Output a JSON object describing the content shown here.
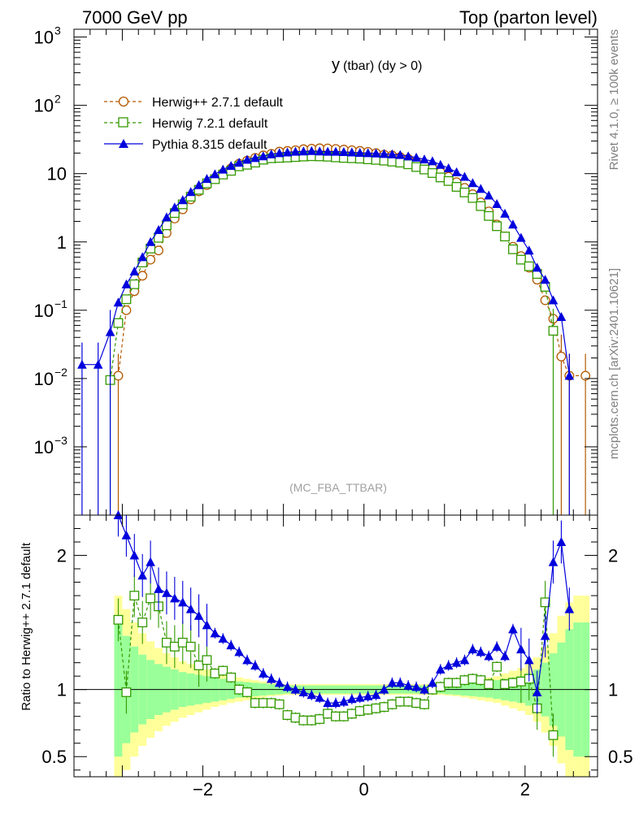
{
  "header": {
    "left": "7000 GeV pp",
    "right": "Top (parton level)"
  },
  "side_labels": {
    "rivet": "Rivet 4.1.0, ≥ 100k events",
    "mcplots": "mcplots.cern.ch [arXiv:2401.10621]"
  },
  "colors": {
    "herwig271": "#b35900",
    "herwig721": "#339900",
    "pythia": "#0000dd",
    "band_inner": "#99ff99",
    "band_outer": "#ffff99"
  },
  "chart_data": [
    {
      "type": "line",
      "title": "y (tbar) (dy > 0)",
      "title_main": "y",
      "title_sub": "(tbar) (dy > 0)",
      "analysis_tag": "(MC_FBA_TTBAR)",
      "xlabel": "",
      "ylabel": "",
      "xlim": [
        -3.6,
        2.9
      ],
      "ylim": [
        0.0001,
        1300
      ],
      "yscale": "log",
      "y_ticks": [
        {
          "value": 0.001,
          "base": "10",
          "exp": "−3"
        },
        {
          "value": 0.01,
          "base": "10",
          "exp": "−2"
        },
        {
          "value": 0.1,
          "base": "10",
          "exp": "−1"
        },
        {
          "value": 1,
          "base": "1",
          "exp": ""
        },
        {
          "value": 10,
          "base": "10",
          "exp": ""
        },
        {
          "value": 100,
          "base": "10",
          "exp": "2"
        },
        {
          "value": 1000,
          "base": "10",
          "exp": "3"
        }
      ],
      "legend": [
        "Herwig++ 2.7.1 default",
        "Herwig 7.2.1 default",
        "Pythia 8.315 default"
      ],
      "series": [
        {
          "name": "Herwig++ 2.7.1 default",
          "marker": "open-circle",
          "x": [
            -3.05,
            -2.95,
            -2.85,
            -2.75,
            -2.65,
            -2.55,
            -2.45,
            -2.35,
            -2.25,
            -2.15,
            -2.05,
            -1.95,
            -1.85,
            -1.75,
            -1.65,
            -1.55,
            -1.45,
            -1.35,
            -1.25,
            -1.15,
            -1.05,
            -0.95,
            -0.85,
            -0.75,
            -0.65,
            -0.55,
            -0.45,
            -0.35,
            -0.25,
            -0.15,
            -0.05,
            0.05,
            0.15,
            0.25,
            0.35,
            0.45,
            0.55,
            0.65,
            0.75,
            0.85,
            0.95,
            1.05,
            1.15,
            1.25,
            1.35,
            1.45,
            1.55,
            1.65,
            1.75,
            1.85,
            1.95,
            2.05,
            2.15,
            2.25,
            2.35,
            2.45,
            2.55,
            2.75
          ],
          "values": [
            0.011,
            0.1,
            0.19,
            0.32,
            0.55,
            0.75,
            1.35,
            2.2,
            3.0,
            4.2,
            5.5,
            6.8,
            8.5,
            10.2,
            12.0,
            14.0,
            15.5,
            17.0,
            18.5,
            19.5,
            21.0,
            21.5,
            22.0,
            22.8,
            23.2,
            23.5,
            23.4,
            23.0,
            22.5,
            22.0,
            21.5,
            20.8,
            20.0,
            19.0,
            18.5,
            17.5,
            16.5,
            15.0,
            13.5,
            12.0,
            10.5,
            9.0,
            7.5,
            6.2,
            5.0,
            3.8,
            2.8,
            1.8,
            1.2,
            0.85,
            0.62,
            0.42,
            0.28,
            0.14,
            0.075,
            0.021,
            0.011,
            0.011
          ]
        },
        {
          "name": "Herwig 7.2.1 default",
          "marker": "open-square",
          "x": [
            -3.15,
            -3.05,
            -2.95,
            -2.85,
            -2.75,
            -2.65,
            -2.55,
            -2.45,
            -2.35,
            -2.25,
            -2.15,
            -2.05,
            -1.95,
            -1.85,
            -1.75,
            -1.65,
            -1.55,
            -1.45,
            -1.35,
            -1.25,
            -1.15,
            -1.05,
            -0.95,
            -0.85,
            -0.75,
            -0.65,
            -0.55,
            -0.45,
            -0.35,
            -0.25,
            -0.15,
            -0.05,
            0.05,
            0.15,
            0.25,
            0.35,
            0.45,
            0.55,
            0.65,
            0.75,
            0.85,
            0.95,
            1.05,
            1.15,
            1.25,
            1.35,
            1.45,
            1.55,
            1.65,
            1.75,
            1.85,
            1.95,
            2.05,
            2.15,
            2.25,
            2.35
          ],
          "values": [
            0.0095,
            0.065,
            0.145,
            0.24,
            0.5,
            0.8,
            1.15,
            1.75,
            2.65,
            3.55,
            4.6,
            5.8,
            7.2,
            8.3,
            9.7,
            11.0,
            12.8,
            13.5,
            14.5,
            16.0,
            16.8,
            17.0,
            17.2,
            17.5,
            17.8,
            18.0,
            17.9,
            17.7,
            17.3,
            17.0,
            16.8,
            16.6,
            16.2,
            15.9,
            15.5,
            15.0,
            14.5,
            13.7,
            12.5,
            11.5,
            10.2,
            8.8,
            7.8,
            6.4,
            5.3,
            4.4,
            3.35,
            2.4,
            1.7,
            1.2,
            0.78,
            0.55,
            0.44,
            0.34,
            0.22,
            0.05
          ]
        },
        {
          "name": "Pythia 8.315 default",
          "marker": "filled-triangle",
          "x": [
            -3.5,
            -3.3,
            -3.15,
            -3.05,
            -2.95,
            -2.85,
            -2.75,
            -2.65,
            -2.55,
            -2.45,
            -2.35,
            -2.25,
            -2.15,
            -2.05,
            -1.95,
            -1.85,
            -1.75,
            -1.65,
            -1.55,
            -1.45,
            -1.35,
            -1.25,
            -1.15,
            -1.05,
            -0.95,
            -0.85,
            -0.75,
            -0.65,
            -0.55,
            -0.45,
            -0.35,
            -0.25,
            -0.15,
            -0.05,
            0.05,
            0.15,
            0.25,
            0.35,
            0.45,
            0.55,
            0.65,
            0.75,
            0.85,
            0.95,
            1.05,
            1.15,
            1.25,
            1.35,
            1.45,
            1.55,
            1.65,
            1.75,
            1.85,
            1.95,
            2.05,
            2.15,
            2.25,
            2.35,
            2.45,
            2.55
          ],
          "values": [
            0.016,
            0.016,
            0.048,
            0.13,
            0.24,
            0.37,
            0.6,
            1.0,
            1.5,
            2.3,
            3.2,
            4.1,
            5.4,
            6.8,
            8.4,
            9.8,
            11.5,
            13.0,
            14.5,
            16.0,
            17.0,
            18.0,
            19.2,
            20.0,
            20.5,
            21.0,
            21.2,
            21.5,
            21.2,
            21.0,
            21.0,
            20.8,
            20.5,
            20.2,
            20.0,
            19.8,
            19.5,
            19.2,
            18.8,
            18.0,
            17.2,
            16.2,
            15.2,
            13.5,
            12.0,
            10.5,
            9.0,
            7.3,
            6.0,
            4.8,
            3.6,
            2.6,
            1.8,
            1.15,
            0.75,
            0.42,
            0.28,
            0.14,
            0.08,
            0.011
          ]
        }
      ]
    },
    {
      "type": "line",
      "title": "",
      "xlabel": "",
      "ylabel": "Ratio to Herwig++ 2.7.1 default",
      "xlim": [
        -3.6,
        2.9
      ],
      "ylim": [
        0.35,
        2.3
      ],
      "x_ticks": [
        {
          "value": -2,
          "label": "−2"
        },
        {
          "value": 0,
          "label": "0"
        },
        {
          "value": 2,
          "label": "2"
        }
      ],
      "y_ticks": [
        {
          "value": 0.5,
          "label": "0.5"
        },
        {
          "value": 1,
          "label": "1"
        },
        {
          "value": 2,
          "label": "2"
        }
      ],
      "reference_line": 1,
      "uncertainty_band": {
        "x": [
          -3.1,
          -3.0,
          -2.9,
          -2.8,
          -2.7,
          -2.6,
          -2.5,
          -2.4,
          -2.3,
          -2.2,
          -2.1,
          -2.0,
          -1.9,
          -1.8,
          -1.7,
          -1.6,
          -1.5,
          -1.4,
          -1.3,
          -1.2,
          -1.1,
          -1.0,
          1.0,
          1.1,
          1.2,
          1.3,
          1.4,
          1.5,
          1.6,
          1.7,
          1.8,
          1.9,
          2.0,
          2.1,
          2.2,
          2.3,
          2.4,
          2.5,
          2.6,
          2.7,
          2.8
        ],
        "inner": [
          0.5,
          0.4,
          0.32,
          0.26,
          0.22,
          0.19,
          0.17,
          0.15,
          0.13,
          0.12,
          0.11,
          0.1,
          0.09,
          0.08,
          0.07,
          0.06,
          0.055,
          0.05,
          0.045,
          0.04,
          0.035,
          0.03,
          0.035,
          0.04,
          0.045,
          0.05,
          0.055,
          0.06,
          0.07,
          0.08,
          0.09,
          0.1,
          0.12,
          0.15,
          0.2,
          0.27,
          0.35,
          0.45,
          0.5,
          0.5
        ],
        "outer": [
          0.7,
          0.6,
          0.5,
          0.42,
          0.36,
          0.31,
          0.27,
          0.24,
          0.21,
          0.19,
          0.17,
          0.15,
          0.13,
          0.115,
          0.1,
          0.09,
          0.08,
          0.07,
          0.06,
          0.05,
          0.045,
          0.04,
          0.045,
          0.05,
          0.06,
          0.07,
          0.08,
          0.09,
          0.1,
          0.12,
          0.14,
          0.16,
          0.19,
          0.24,
          0.32,
          0.42,
          0.55,
          0.65,
          0.7,
          0.7
        ]
      },
      "series": [
        {
          "name": "Herwig 7.2.1 / Herwig++ 2.7.1",
          "marker": "open-square",
          "x": [
            -3.05,
            -2.95,
            -2.85,
            -2.75,
            -2.65,
            -2.55,
            -2.45,
            -2.35,
            -2.25,
            -2.15,
            -2.05,
            -1.95,
            -1.85,
            -1.75,
            -1.65,
            -1.55,
            -1.45,
            -1.35,
            -1.25,
            -1.15,
            -1.05,
            -0.95,
            -0.85,
            -0.75,
            -0.65,
            -0.55,
            -0.45,
            -0.35,
            -0.25,
            -0.15,
            -0.05,
            0.05,
            0.15,
            0.25,
            0.35,
            0.45,
            0.55,
            0.65,
            0.75,
            0.85,
            0.95,
            1.05,
            1.15,
            1.25,
            1.35,
            1.45,
            1.55,
            1.65,
            1.75,
            1.85,
            1.95,
            2.05,
            2.15,
            2.25,
            2.35
          ],
          "values": [
            1.52,
            0.98,
            1.7,
            1.5,
            1.68,
            1.62,
            1.35,
            1.32,
            1.35,
            1.32,
            1.18,
            1.22,
            1.12,
            1.14,
            1.09,
            1.0,
            0.98,
            0.9,
            0.9,
            0.9,
            0.89,
            0.81,
            0.79,
            0.77,
            0.77,
            0.78,
            0.82,
            0.8,
            0.8,
            0.82,
            0.84,
            0.85,
            0.86,
            0.87,
            0.89,
            0.91,
            0.91,
            0.9,
            0.89,
            1.0,
            1.02,
            1.05,
            1.05,
            1.07,
            1.08,
            1.07,
            1.04,
            1.17,
            1.04,
            1.05,
            1.06,
            1.08,
            0.86,
            1.65,
            0.66
          ]
        },
        {
          "name": "Pythia 8.315 / Herwig++ 2.7.1",
          "marker": "filled-triangle",
          "x": [
            -3.05,
            -2.95,
            -2.85,
            -2.75,
            -2.65,
            -2.55,
            -2.45,
            -2.35,
            -2.25,
            -2.15,
            -2.05,
            -1.95,
            -1.85,
            -1.75,
            -1.65,
            -1.55,
            -1.45,
            -1.35,
            -1.25,
            -1.15,
            -1.05,
            -0.95,
            -0.85,
            -0.75,
            -0.65,
            -0.55,
            -0.45,
            -0.35,
            -0.25,
            -0.15,
            -0.05,
            0.05,
            0.15,
            0.25,
            0.35,
            0.45,
            0.55,
            0.65,
            0.75,
            0.85,
            0.95,
            1.05,
            1.15,
            1.25,
            1.35,
            1.45,
            1.55,
            1.65,
            1.75,
            1.85,
            1.95,
            2.05,
            2.15,
            2.25,
            2.35,
            2.45,
            2.55
          ],
          "values": [
            2.3,
            2.15,
            2.0,
            1.85,
            1.95,
            1.75,
            1.72,
            1.68,
            1.65,
            1.6,
            1.55,
            1.48,
            1.42,
            1.38,
            1.33,
            1.28,
            1.22,
            1.18,
            1.12,
            1.08,
            1.05,
            1.02,
            1.0,
            0.98,
            0.96,
            0.94,
            0.9,
            0.9,
            0.91,
            0.93,
            0.94,
            0.95,
            0.96,
            1.0,
            1.05,
            1.05,
            1.03,
            1.02,
            1.0,
            1.05,
            1.15,
            1.18,
            1.2,
            1.22,
            1.3,
            1.28,
            1.25,
            1.32,
            1.25,
            1.45,
            1.3,
            1.22,
            0.98,
            1.4,
            1.95,
            2.1,
            1.6
          ]
        }
      ]
    }
  ]
}
